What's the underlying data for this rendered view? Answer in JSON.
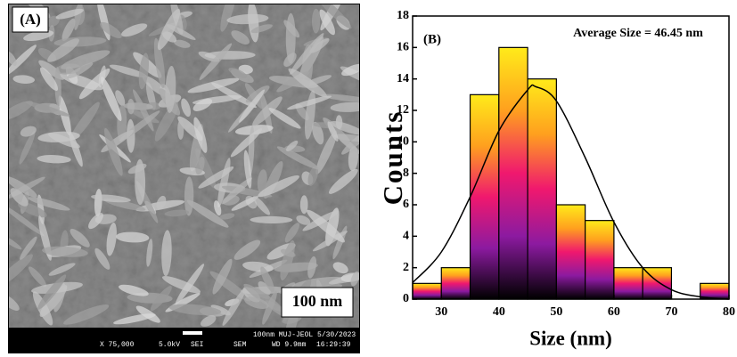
{
  "panel_a": {
    "label": "(A)",
    "scale_bar": "100 nm",
    "footer": {
      "magnification": "X 75,000",
      "voltage": "5.0kV",
      "detector": "SEI",
      "mode": "SEM",
      "info": "100nm MUJ-JEOL 5/30/2023",
      "wd": "WD 9.9mm",
      "time": "16:29:39"
    }
  },
  "chart_data": {
    "type": "histogram",
    "panel_label": "(B)",
    "annotation": "Average Size = 46.45 nm",
    "x_label": "Size (nm)",
    "y_label": "Counts",
    "bins": [
      25,
      30,
      35,
      40,
      45,
      50,
      55,
      60,
      65,
      70,
      75,
      80
    ],
    "counts": [
      1,
      2,
      13,
      16,
      14,
      6,
      5,
      2,
      2,
      0,
      1
    ],
    "gradient": [
      "#ffeb1a",
      "#ffa01e",
      "#f0186e",
      "#8c1aa0",
      "#000000"
    ],
    "fit": {
      "color": "#000000",
      "x": [
        25,
        30,
        35,
        40,
        45,
        46.45,
        50,
        55,
        60,
        65,
        70,
        75,
        80
      ],
      "y": [
        1.05,
        3.0,
        6.5,
        10.7,
        13.3,
        13.5,
        12.6,
        9.0,
        4.9,
        2.0,
        0.6,
        0.15,
        0.0
      ]
    },
    "xlim": [
      25,
      80
    ],
    "ylim": [
      0,
      18
    ],
    "xticks": [
      30,
      40,
      50,
      60,
      70,
      80
    ],
    "yticks": [
      0,
      2,
      4,
      6,
      8,
      10,
      12,
      14,
      16,
      18
    ]
  }
}
